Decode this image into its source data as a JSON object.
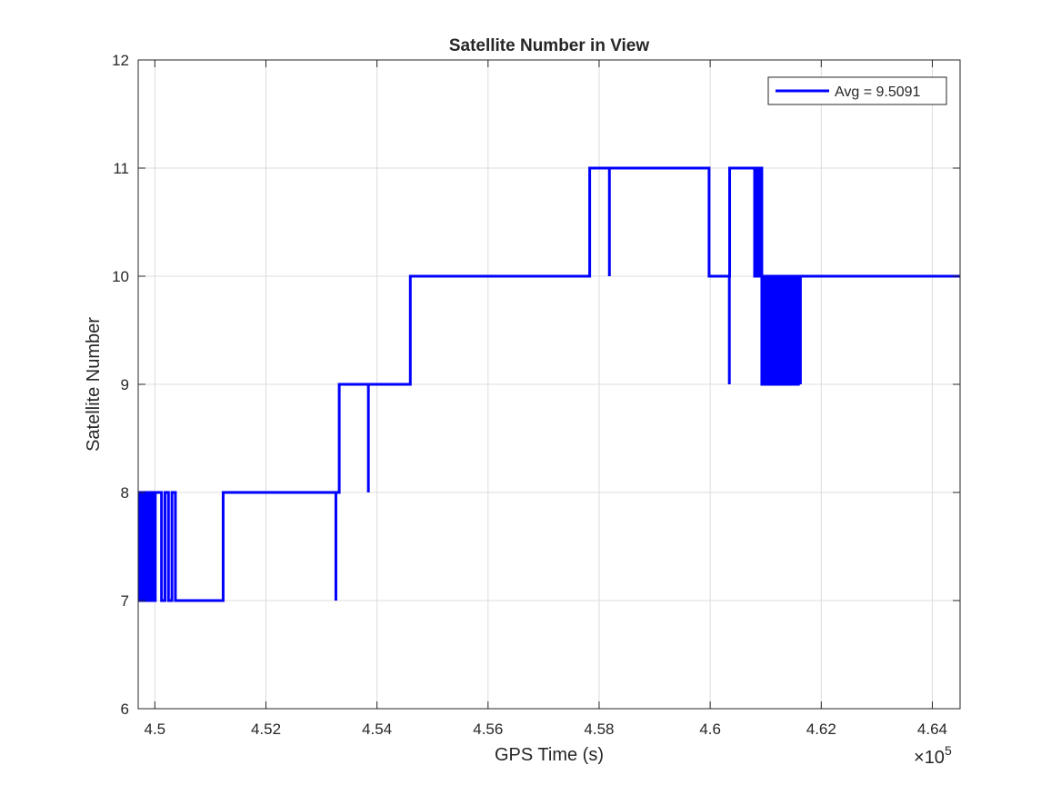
{
  "chart_data": {
    "type": "line",
    "title": "Satellite Number in View",
    "xlabel": "GPS Time (s)",
    "ylabel": "Satellite Number",
    "x_exponent_base": "10",
    "x_exponent_power": "5",
    "xlim": [
      449700,
      446500
    ],
    "xlim_note": "",
    "ylim": [
      6,
      12
    ],
    "x_ticks": [
      450000,
      452000,
      454000,
      456000,
      458000,
      460000,
      462000,
      464000
    ],
    "x_tick_labels": [
      "4.5",
      "4.52",
      "4.54",
      "4.56",
      "4.58",
      "4.6",
      "4.62",
      "4.64"
    ],
    "y_ticks": [
      6,
      7,
      8,
      9,
      10,
      11,
      12
    ],
    "y_tick_labels": [
      "6",
      "7",
      "8",
      "9",
      "10",
      "11",
      "12"
    ],
    "grid": true,
    "legend_position": "top-right",
    "series": [
      {
        "name": "Avg = 9.5091",
        "color": "#0000ff",
        "segments": [
          {
            "x_start": 449700,
            "x_end": 450020,
            "alternating": [
              7,
              8
            ],
            "toggles": 26
          },
          {
            "x_start": 450020,
            "x_end": 450120,
            "value": 8
          },
          {
            "x_start": 450120,
            "x_end": 450370,
            "alternating": [
              7,
              8
            ],
            "toggles": 4
          },
          {
            "x_start": 450370,
            "x_end": 451230,
            "value": 7
          },
          {
            "x_start": 451230,
            "x_end": 453250,
            "value": 8
          },
          {
            "x_start": 453250,
            "x_end": 453270,
            "spike_to": 7
          },
          {
            "x_start": 453270,
            "x_end": 453320,
            "value": 8
          },
          {
            "x_start": 453320,
            "x_end": 453840,
            "value": 9
          },
          {
            "x_start": 453840,
            "x_end": 453850,
            "spike_to": 8
          },
          {
            "x_start": 453850,
            "x_end": 454600,
            "value": 9
          },
          {
            "x_start": 454600,
            "x_end": 457830,
            "value": 10
          },
          {
            "x_start": 457830,
            "x_end": 458180,
            "value": 11
          },
          {
            "x_start": 458180,
            "x_end": 458190,
            "spike_to": 10
          },
          {
            "x_start": 458190,
            "x_end": 459980,
            "value": 11
          },
          {
            "x_start": 459980,
            "x_end": 460340,
            "value": 10
          },
          {
            "x_start": 460340,
            "x_end": 460350,
            "spike_to": 9
          },
          {
            "x_start": 460350,
            "x_end": 460800,
            "value": 11
          },
          {
            "x_start": 460800,
            "x_end": 460930,
            "alternating": [
              10,
              11
            ],
            "toggles": 22
          },
          {
            "x_start": 460930,
            "x_end": 461600,
            "alternating": [
              9,
              10
            ],
            "toggles": 60
          },
          {
            "x_start": 461600,
            "x_end": 461650,
            "spike_to": 9
          },
          {
            "x_start": 461650,
            "x_end": 464500,
            "value": 10
          }
        ]
      }
    ]
  }
}
